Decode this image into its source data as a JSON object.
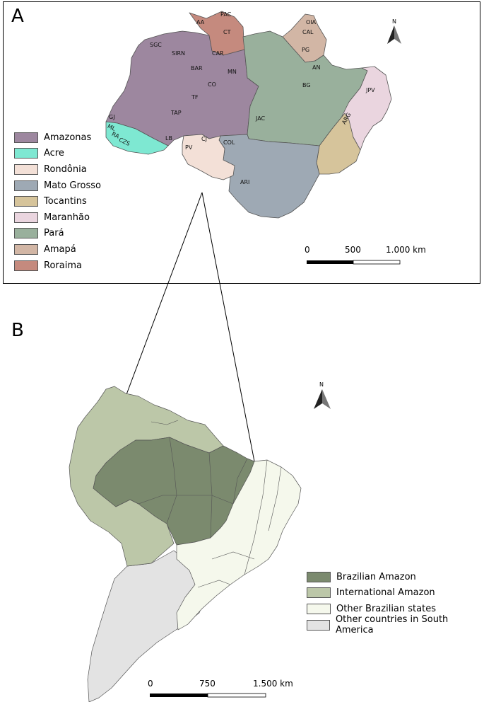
{
  "panel_a": {
    "label": "A",
    "legend": [
      {
        "name": "Amazonas",
        "color": "#9d879f"
      },
      {
        "name": "Acre",
        "color": "#7ee8d2"
      },
      {
        "name": "Rondônia",
        "color": "#f3e0d7"
      },
      {
        "name": "Mato Grosso",
        "color": "#9ea9b4"
      },
      {
        "name": "Tocantins",
        "color": "#d6c49b"
      },
      {
        "name": "Maranhão",
        "color": "#ead5df"
      },
      {
        "name": "Pará",
        "color": "#99b09c"
      },
      {
        "name": "Amapá",
        "color": "#d2b6a5"
      },
      {
        "name": "Roraima",
        "color": "#c58a7e"
      }
    ],
    "codes": [
      "PAC",
      "AA",
      "CT",
      "CAR",
      "SGC",
      "SIRN",
      "BAR",
      "MN",
      "CO",
      "TF",
      "TAP",
      "GJ",
      "ML",
      "RA",
      "CZS",
      "LB",
      "PV",
      "CJ",
      "COL",
      "ARI",
      "JAC",
      "BG",
      "AN",
      "PG",
      "CAL",
      "OIA",
      "JPV",
      "ARG"
    ],
    "scale": {
      "ticks": [
        "0",
        "500",
        "1.000 km"
      ]
    },
    "north": "N"
  },
  "panel_b": {
    "label": "B",
    "legend": [
      {
        "name": "Brazilian Amazon",
        "color": "#7b8a6e"
      },
      {
        "name": "International Amazon",
        "color": "#bcc7a8"
      },
      {
        "name": "Other Brazilian states",
        "color": "#f5f8ec"
      },
      {
        "name": "Other countries in South America",
        "color": "#e3e3e3"
      }
    ],
    "scale": {
      "ticks": [
        "0",
        "750",
        "1.500 km"
      ]
    },
    "north": "N"
  }
}
